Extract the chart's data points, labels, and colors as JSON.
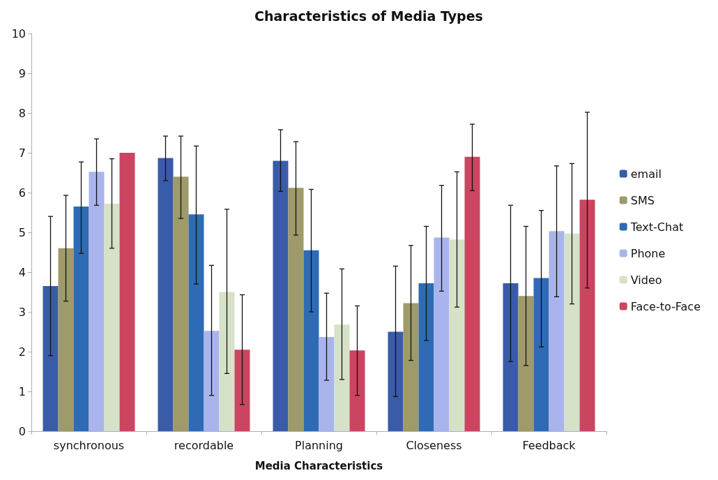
{
  "chart_data": {
    "type": "bar",
    "title": "Characteristics of Media Types",
    "xlabel": "Media Characteristics",
    "categories": [
      "synchronous",
      "recordable",
      "Planning",
      "Closeness",
      "Feedback"
    ],
    "ylim": [
      0,
      10
    ],
    "yticks": [
      0,
      1,
      2,
      3,
      4,
      5,
      6,
      7,
      8,
      9,
      10
    ],
    "grid": false,
    "legend": "right",
    "series": [
      {
        "name": "email",
        "color": "#3a5ba8",
        "values": [
          3.65,
          6.87,
          6.8,
          2.5,
          3.72
        ],
        "errors": [
          [
            1.9,
            5.4
          ],
          [
            6.3,
            7.42
          ],
          [
            6.03,
            7.58
          ],
          [
            0.87,
            4.15
          ],
          [
            1.75,
            5.68
          ]
        ]
      },
      {
        "name": "SMS",
        "color": "#9e9a6a",
        "values": [
          4.6,
          6.4,
          6.12,
          3.22,
          3.4
        ],
        "errors": [
          [
            3.27,
            5.93
          ],
          [
            5.35,
            7.42
          ],
          [
            4.93,
            7.28
          ],
          [
            1.78,
            4.67
          ],
          [
            1.65,
            5.15
          ]
        ]
      },
      {
        "name": "Text-Chat",
        "color": "#2f6bb5",
        "values": [
          5.65,
          5.45,
          4.55,
          3.72,
          3.85
        ],
        "errors": [
          [
            4.47,
            6.77
          ],
          [
            3.7,
            7.17
          ],
          [
            3.0,
            6.08
          ],
          [
            2.28,
            5.15
          ],
          [
            2.12,
            5.55
          ]
        ]
      },
      {
        "name": "Phone",
        "color": "#aab4ec",
        "values": [
          6.52,
          2.52,
          2.37,
          4.87,
          5.03
        ],
        "errors": [
          [
            5.68,
            7.35
          ],
          [
            0.9,
            4.17
          ],
          [
            1.28,
            3.47
          ],
          [
            3.52,
            6.18
          ],
          [
            3.38,
            6.67
          ]
        ]
      },
      {
        "name": "Video",
        "color": "#d6e2c8",
        "values": [
          5.72,
          3.5,
          2.68,
          4.82,
          4.97
        ],
        "errors": [
          [
            4.6,
            6.85
          ],
          [
            1.45,
            5.58
          ],
          [
            1.3,
            4.08
          ],
          [
            3.12,
            6.52
          ],
          [
            3.2,
            6.73
          ]
        ]
      },
      {
        "name": "Face-to-Face",
        "color": "#cc4560",
        "values": [
          7.0,
          2.05,
          2.03,
          6.9,
          5.82
        ],
        "errors": [
          null,
          [
            0.67,
            3.43
          ],
          [
            0.9,
            3.15
          ],
          [
            6.05,
            7.72
          ],
          [
            3.6,
            8.02
          ]
        ]
      }
    ]
  }
}
